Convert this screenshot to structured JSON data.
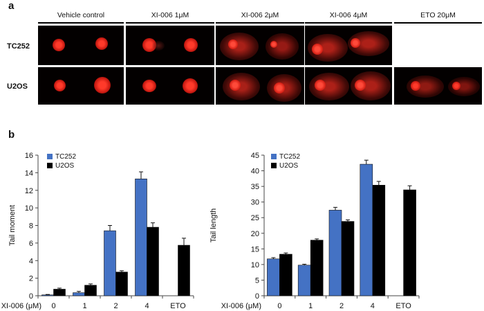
{
  "panel_a": {
    "label": "a",
    "columns": [
      "Vehicle control",
      "XI-006 1μM",
      "XI-006 2μM",
      "XI-006 4μM",
      "ETO 20μM"
    ],
    "rows": [
      "TC252",
      "U2OS"
    ]
  },
  "panel_b": {
    "label": "b"
  },
  "colors": {
    "TC252": "#4472c4",
    "U2OS": "#000000",
    "comet": "#e0201c"
  },
  "chart_data": [
    {
      "type": "bar",
      "title": "",
      "xlabel": "XI-006 (μM)",
      "ylabel": "Tail moment",
      "categories": [
        "0",
        "1",
        "2",
        "4",
        "ETO"
      ],
      "ylim": [
        0,
        16
      ],
      "yticks": [
        0,
        2,
        4,
        6,
        8,
        10,
        12,
        14,
        16
      ],
      "legend_position": "top-left",
      "series": [
        {
          "name": "TC252",
          "values": [
            0.1,
            0.35,
            7.4,
            13.3,
            null
          ],
          "errors": [
            0.05,
            0.15,
            0.6,
            0.8,
            null
          ]
        },
        {
          "name": "U2OS",
          "values": [
            0.75,
            1.2,
            2.7,
            7.8,
            5.75
          ],
          "errors": [
            0.12,
            0.15,
            0.15,
            0.5,
            0.8
          ]
        }
      ]
    },
    {
      "type": "bar",
      "title": "",
      "xlabel": "XI-006 (μM)",
      "ylabel": "Tail length",
      "categories": [
        "0",
        "1",
        "2",
        "4",
        "ETO"
      ],
      "ylim": [
        0,
        45
      ],
      "yticks": [
        0,
        5,
        10,
        15,
        20,
        25,
        30,
        35,
        40,
        45
      ],
      "legend_position": "top-left",
      "series": [
        {
          "name": "TC252",
          "values": [
            11.8,
            9.8,
            27.4,
            42.1,
            null
          ],
          "errors": [
            0.4,
            0.3,
            0.9,
            1.3,
            null
          ]
        },
        {
          "name": "U2OS",
          "values": [
            13.3,
            17.8,
            23.8,
            35.4,
            33.9
          ],
          "errors": [
            0.4,
            0.4,
            0.5,
            1.2,
            1.3
          ]
        }
      ]
    }
  ]
}
